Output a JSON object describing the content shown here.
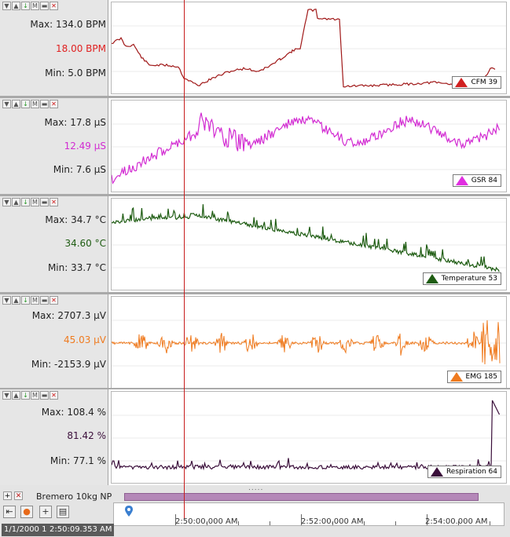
{
  "toolbar_icons": [
    "collapse-icon",
    "expand-icon",
    "move-down-icon",
    "marker-icon",
    "minimize-icon",
    "close-icon"
  ],
  "channels": [
    {
      "max_label": "Max: 134.0 BPM",
      "current_label": "18.00 BPM",
      "min_label": "Min: 5.0 BPM",
      "legend_label": "CFM 39",
      "color": "#a01818"
    },
    {
      "max_label": "Max: 17.8 µS",
      "current_label": "12.49 µS",
      "min_label": "Min: 7.6 µS",
      "legend_label": "GSR 84",
      "color": "#d22bd2"
    },
    {
      "max_label": "Max: 34.7 °C",
      "current_label": "34.60 °C",
      "min_label": "Min: 33.7 °C",
      "legend_label": "Temperature 53",
      "color": "#1e5c12"
    },
    {
      "max_label": "Max: 2707.3 µV",
      "current_label": "45.03 µV",
      "min_label": "Min: -2153.9 µV",
      "legend_label": "EMG 185",
      "color": "#ef7a1e"
    },
    {
      "max_label": "Max: 108.4 %",
      "current_label": "81.42 %",
      "min_label": "Min: 77.1 %",
      "legend_label": "Respiration 64",
      "color": "#3a0e3a"
    }
  ],
  "events": {
    "label": "Bremero 10kg NP"
  },
  "timeline": {
    "ticks": [
      "2:50:00.000 AM",
      "2:52:00.000 AM",
      "2:54:00.000 AM"
    ],
    "date": "1/1/2000 1",
    "current_time": "2:50:09.353 AM"
  }
}
